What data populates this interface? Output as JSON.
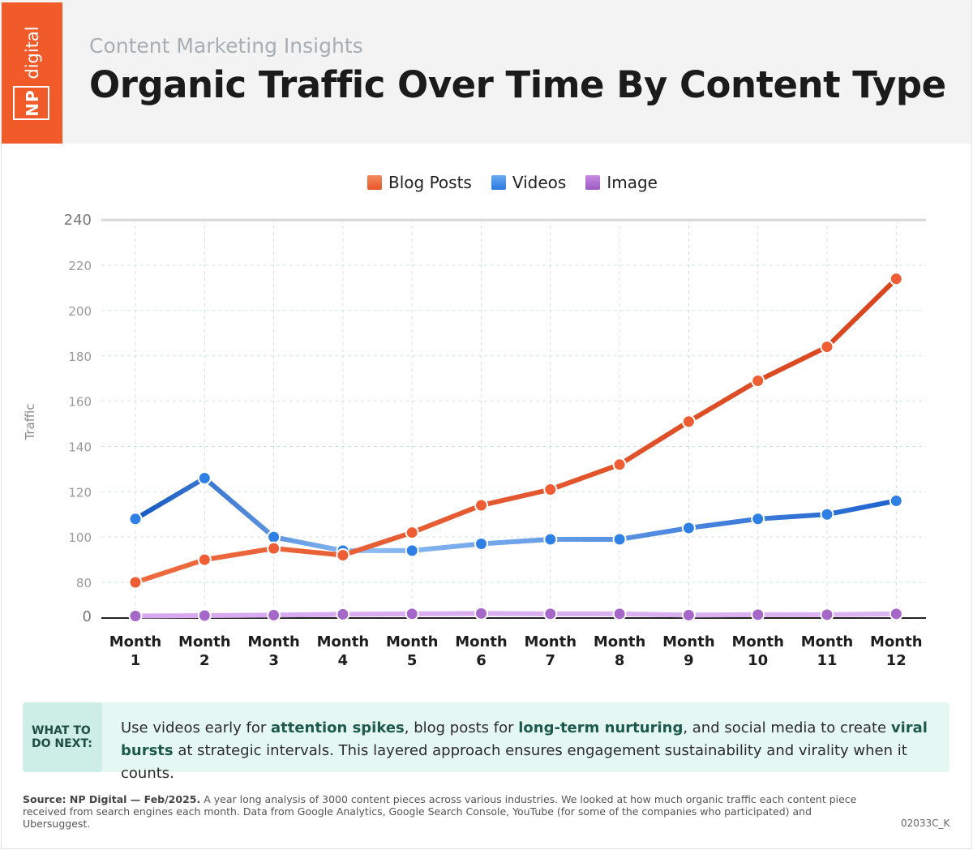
{
  "header": {
    "logo_np": "NP",
    "logo_digital": "digital",
    "subtitle": "Content Marketing Insights",
    "title": "Organic Traffic Over Time By Content Type"
  },
  "colors": {
    "blog": "#ee5d33",
    "videos": "#2f80e4",
    "image": "#a567c8",
    "accent": "#f15a29"
  },
  "chart_data": {
    "type": "line",
    "title": "Organic Traffic Over Time By Content Type",
    "ylabel": "Traffic",
    "xlabel": "",
    "categories": [
      "Month 1",
      "Month 2",
      "Month 3",
      "Month 4",
      "Month 5",
      "Month 6",
      "Month 7",
      "Month 8",
      "Month 9",
      "Month 10",
      "Month 11",
      "Month 12"
    ],
    "category_lines": [
      [
        "Month",
        "1"
      ],
      [
        "Month",
        "2"
      ],
      [
        "Month",
        "3"
      ],
      [
        "Month",
        "4"
      ],
      [
        "Month",
        "5"
      ],
      [
        "Month",
        "6"
      ],
      [
        "Month",
        "7"
      ],
      [
        "Month",
        "8"
      ],
      [
        "Month",
        "9"
      ],
      [
        "Month",
        "10"
      ],
      [
        "Month",
        "11"
      ],
      [
        "Month",
        "12"
      ]
    ],
    "y_ticks": [
      0,
      80,
      100,
      120,
      140,
      160,
      180,
      200,
      220,
      240
    ],
    "ylim": [
      0,
      240
    ],
    "y_axis_break": "axis jumps from 0 to 80",
    "grid": true,
    "legend_position": "top-center",
    "series": [
      {
        "name": "Blog Posts",
        "color": "#ee5d33",
        "values": [
          80,
          90,
          95,
          92,
          102,
          114,
          121,
          132,
          151,
          169,
          184,
          214
        ]
      },
      {
        "name": "Videos",
        "color": "#2f80e4",
        "values": [
          108,
          126,
          100,
          94,
          94,
          97,
          99,
          99,
          104,
          108,
          110,
          116
        ]
      },
      {
        "name": "Image",
        "color": "#a567c8",
        "values": [
          1,
          2,
          3,
          5,
          6,
          7,
          6,
          6,
          3,
          4,
          4,
          6
        ]
      }
    ]
  },
  "callout": {
    "tag_line1": "WHAT TO",
    "tag_line2": "DO NEXT:",
    "p1": "Use videos early for ",
    "b1": "attention spikes",
    "p2": ", blog posts for ",
    "b2": "long-term nurturing",
    "p3": ", and social media to create ",
    "b3": "viral bursts",
    "p4": " at strategic intervals. This layered approach ensures engagement sustainability and virality when it counts."
  },
  "footer": {
    "source_label": "Source: NP Digital — Feb/2025.",
    "source_text": " A year long analysis of 3000 content pieces across various industries. We looked at how much organic traffic each content piece received from search engines each month. Data from Google Analytics, Google Search Console, YouTube (for some of the companies who participated) and Ubersuggest.",
    "code": "02033C_K"
  }
}
